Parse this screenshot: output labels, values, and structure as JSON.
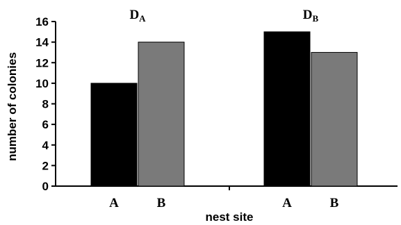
{
  "chart_data": {
    "type": "bar",
    "xlabel": "nest site",
    "ylabel": "number of colonies",
    "ylim": [
      0,
      16
    ],
    "yticks": [
      0,
      2,
      4,
      6,
      8,
      10,
      12,
      14,
      16
    ],
    "grid": false,
    "groups": [
      {
        "label_main": "D",
        "label_sub": "A",
        "categories": [
          "A",
          "B"
        ],
        "values": [
          10,
          14
        ],
        "colors": [
          "#000000",
          "#7a7a7a"
        ]
      },
      {
        "label_main": "D",
        "label_sub": "B",
        "categories": [
          "A",
          "B"
        ],
        "values": [
          15,
          13
        ],
        "colors": [
          "#000000",
          "#7a7a7a"
        ]
      }
    ]
  }
}
